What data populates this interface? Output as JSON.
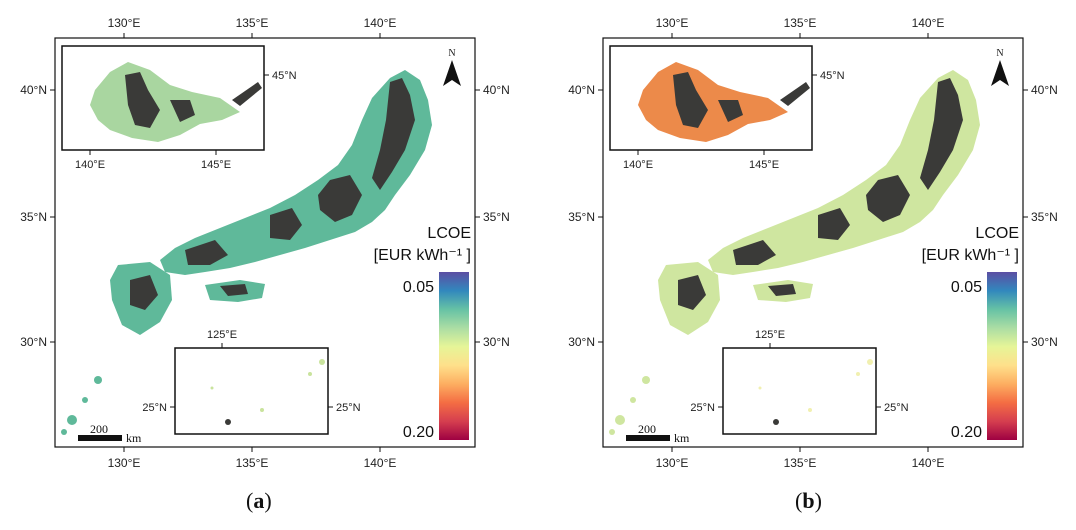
{
  "panels": [
    {
      "id": "a",
      "label_open": "(",
      "label_letter": "a",
      "label_close": ")",
      "fill_main": "#5fb99a",
      "fill_hokkaido": "#a9d6a0",
      "fill_south": "#c9e39d"
    },
    {
      "id": "b",
      "label_open": "(",
      "label_letter": "b",
      "label_close": ")",
      "fill_main": "#cfe6a0",
      "fill_hokkaido": "#ec8a4a",
      "fill_south": "#f1f0b0"
    }
  ],
  "axis": {
    "top_ticks": [
      "130°E",
      "135°E",
      "140°E"
    ],
    "bottom_ticks": [
      "130°E",
      "135°E",
      "140°E"
    ],
    "left_ticks": [
      "40°N",
      "35°N",
      "30°N"
    ],
    "right_ticks": [
      "40°N",
      "35°N",
      "30°N"
    ]
  },
  "inset_north": {
    "right_tick": "45°N",
    "bottom_ticks": [
      "140°E",
      "145°E"
    ]
  },
  "inset_south": {
    "top_tick": "125°E",
    "left_tick": "25°N",
    "right_tick": "25°N"
  },
  "north_arrow": {
    "letter": "N"
  },
  "scale_bar": {
    "value": "200",
    "unit": "km"
  },
  "legend": {
    "title_line1": "LCOE",
    "title_line2": "[EUR kWh⁻¹ ]",
    "max_label": "0.05",
    "min_label": "0.20",
    "colors_top_to_bottom": [
      "#5b4ea3",
      "#3288bd",
      "#66c2a5",
      "#abdda4",
      "#e6f598",
      "#fee08b",
      "#fdae61",
      "#f46d43",
      "#d53e4f",
      "#9e0142"
    ]
  },
  "colors": {
    "terrain": "#3a3a38",
    "frame": "#111111"
  }
}
